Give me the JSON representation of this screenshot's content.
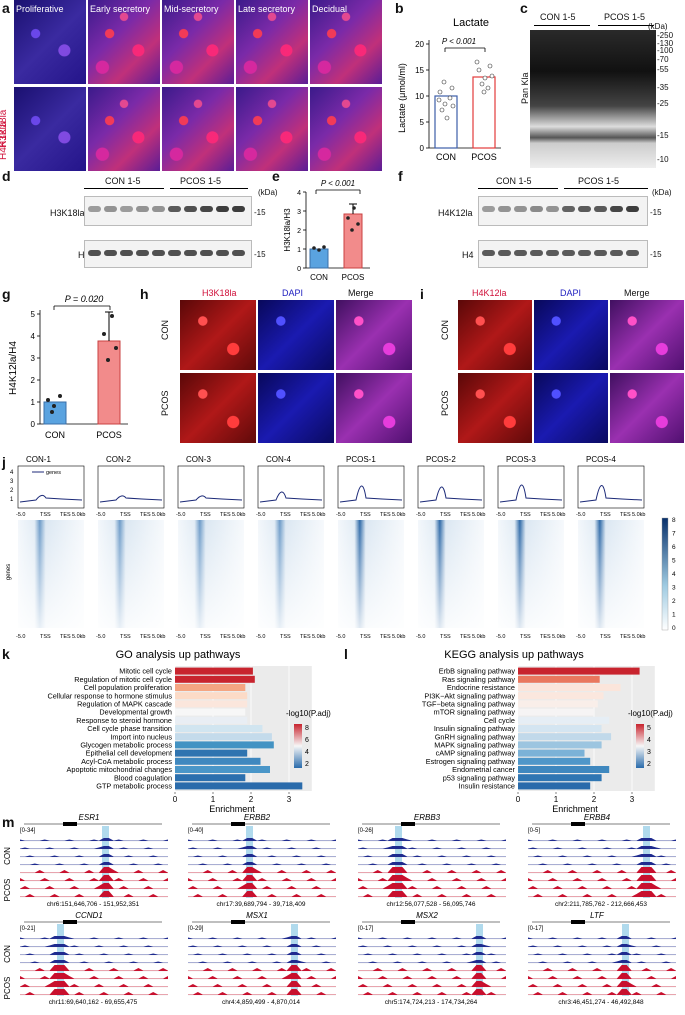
{
  "panels": {
    "a": "a",
    "b": "b",
    "c": "c",
    "d": "d",
    "e": "e",
    "f": "f",
    "g": "g",
    "h": "h",
    "i": "i",
    "j": "j",
    "k": "k",
    "l": "l",
    "m": "m"
  },
  "panel_a": {
    "stages": [
      "Proliferative",
      "Early secretory",
      "Mid-secretory",
      "Late secretory",
      "Decidual"
    ],
    "rows": [
      "H3K18la",
      "H4K12la"
    ]
  },
  "panel_b": {
    "title": "Lactate",
    "ylabel": "Lactate (μmol/ml)",
    "yticks": [
      "0",
      "5",
      "10",
      "15",
      "20"
    ],
    "groups": [
      "CON",
      "PCOS"
    ],
    "pvalue": "P < 0.001"
  },
  "panel_c": {
    "groups": [
      "CON 1-5",
      "PCOS 1-5"
    ],
    "kda": "(kDa)",
    "markers": [
      "-250",
      "-130",
      "-100",
      "-70",
      "-55",
      "-35",
      "-25",
      "-15",
      "-10"
    ],
    "ylabel": "Pan Kla"
  },
  "panel_d": {
    "groups": [
      "CON 1-5",
      "PCOS 1-5"
    ],
    "kda": "(kDa)",
    "rows": [
      "H3K18la",
      "H3"
    ],
    "marker": "-15"
  },
  "panel_e": {
    "ylabel": "H3K18la/H3",
    "pvalue": "P < 0.001",
    "groups": [
      "CON",
      "PCOS"
    ],
    "yticks": [
      "0",
      "1",
      "2",
      "3",
      "4"
    ]
  },
  "panel_f": {
    "groups": [
      "CON 1-5",
      "PCOS 1-5"
    ],
    "kda": "(kDa)",
    "rows": [
      "H4K12la",
      "H4"
    ],
    "marker": "-15"
  },
  "panel_g": {
    "ylabel": "H4K12la/H4",
    "pvalue": "P = 0.020",
    "groups": [
      "CON",
      "PCOS"
    ],
    "yticks": [
      "0",
      "1",
      "2",
      "3",
      "4",
      "5"
    ]
  },
  "panel_h": {
    "cols": [
      "H3K18la",
      "DAPI",
      "Merge"
    ],
    "rows": [
      "CON",
      "PCOS"
    ]
  },
  "panel_i": {
    "cols": [
      "H4K12la",
      "DAPI",
      "Merge"
    ],
    "rows": [
      "CON",
      "PCOS"
    ]
  },
  "panel_j": {
    "samples": [
      "CON-1",
      "CON-2",
      "CON-3",
      "CON-4",
      "PCOS-1",
      "PCOS-2",
      "PCOS-3",
      "PCOS-4"
    ],
    "legend": "genes",
    "xlabels": [
      "-5.0",
      "TSS",
      "TES",
      "5.0kb"
    ],
    "yticks": [
      "4",
      "3",
      "2",
      "1"
    ],
    "heat_ylabel": "genes",
    "scale": [
      "8",
      "7",
      "6",
      "5",
      "4",
      "3",
      "2",
      "1",
      "0"
    ],
    "peak_heights": [
      1.2,
      1.1,
      1.1,
      1.9,
      3.1,
      2.9,
      3.3,
      3.2
    ]
  },
  "panel_k": {
    "title": "GO analysis up pathways",
    "terms": [
      "Mitotic cell cycle",
      "Regulation of mitotic cell cycle",
      "Cell population proliferation",
      "Cellular response to hormone stimulus",
      "Regulation of MAPK cascade",
      "Developmental growth",
      "Response to steroid hormone",
      "Cell cycle phase transition",
      "Import into nucleus",
      "Glycogen metabolic process",
      "Epithelial cell development",
      "Acyl-CoA metabolic process",
      "Apoptotic mitochondrial changes",
      "Blood coagulation",
      "GTP metabolic process"
    ],
    "values": [
      2.05,
      2.1,
      1.85,
      1.9,
      1.9,
      1.85,
      1.9,
      2.3,
      2.55,
      2.6,
      1.9,
      2.25,
      2.5,
      1.85,
      3.35
    ],
    "colors": [
      "#c8242e",
      "#c8242e",
      "#f4a582",
      "#fcdbc7",
      "#fbe6dc",
      "#f7f7f7",
      "#e9eef4",
      "#d1e5f0",
      "#c4dbeb",
      "#4393c3",
      "#2f74b0",
      "#3f88bf",
      "#4a96c8",
      "#2b6fae",
      "#2a6bab"
    ],
    "xlabel": "Enrichment",
    "xticks": [
      "0",
      "1",
      "2",
      "3"
    ],
    "legend_title": "-log10(P.adj)",
    "legend_ticks": [
      "8",
      "6",
      "4",
      "2"
    ]
  },
  "panel_l": {
    "title": "KEGG analysis up pathways",
    "terms": [
      "ErbB signaling pathway",
      "Ras signaling pathway",
      "Endocrine resistance",
      "PI3K−Akt signaling pathway",
      "TGF−beta signaling pathway",
      "mTOR signaling pathway",
      "Cell cycle",
      "Insulin signaling pathway",
      "GnRH signaling pathway",
      "MAPK signaling pathway",
      "cAMP signaling pathway",
      "Estrogen signaling pathway",
      "Endometrial cancer",
      "p53 signaling pathway",
      "Insulin resistance"
    ],
    "values": [
      3.2,
      2.15,
      2.7,
      2.25,
      2.1,
      2.0,
      2.4,
      2.2,
      2.45,
      2.2,
      1.75,
      1.9,
      2.4,
      2.2,
      1.9
    ],
    "colors": [
      "#c8242e",
      "#e9775e",
      "#fbe5db",
      "#fbe7de",
      "#f9eee9",
      "#f6f4f4",
      "#e6eef5",
      "#d4e5f1",
      "#c1d9ea",
      "#9cc5e0",
      "#7bb2d7",
      "#4f97c9",
      "#3f88bf",
      "#2f76b3",
      "#2a6bab"
    ],
    "xlabel": "Enrichment",
    "xticks": [
      "0",
      "1",
      "2",
      "3"
    ],
    "legend_title": "-log10(P.adj)",
    "legend_ticks": [
      "5",
      "4",
      "3",
      "2"
    ]
  },
  "panel_m": {
    "tracks": [
      {
        "gene": "ESR1",
        "range": "[0-34]",
        "coord": "chr6:151,646,706 - 151,952,351"
      },
      {
        "gene": "ERBB2",
        "range": "[0-40]",
        "coord": "chr17:39,689,794 - 39,718,409"
      },
      {
        "gene": "ERBB3",
        "range": "[0-26]",
        "coord": "chr12:56,077,528 - 56,095,746"
      },
      {
        "gene": "ERBB4",
        "range": "[0-5]",
        "coord": "chr2:211,785,762 - 212,666,453"
      },
      {
        "gene": "CCND1",
        "range": "[0-21]",
        "coord": "chr11:69,640,162 - 69,655,475"
      },
      {
        "gene": "MSX1",
        "range": "[0-29]",
        "coord": "chr4:4,859,499 - 4,870,014"
      },
      {
        "gene": "MSX2",
        "range": "[0-17]",
        "coord": "chr5:174,724,213 - 174,734,264"
      },
      {
        "gene": "LTF",
        "range": "[0-17]",
        "coord": "chr3:46,451,274 - 46,492,848"
      }
    ],
    "rows": [
      "CON",
      "PCOS"
    ]
  }
}
